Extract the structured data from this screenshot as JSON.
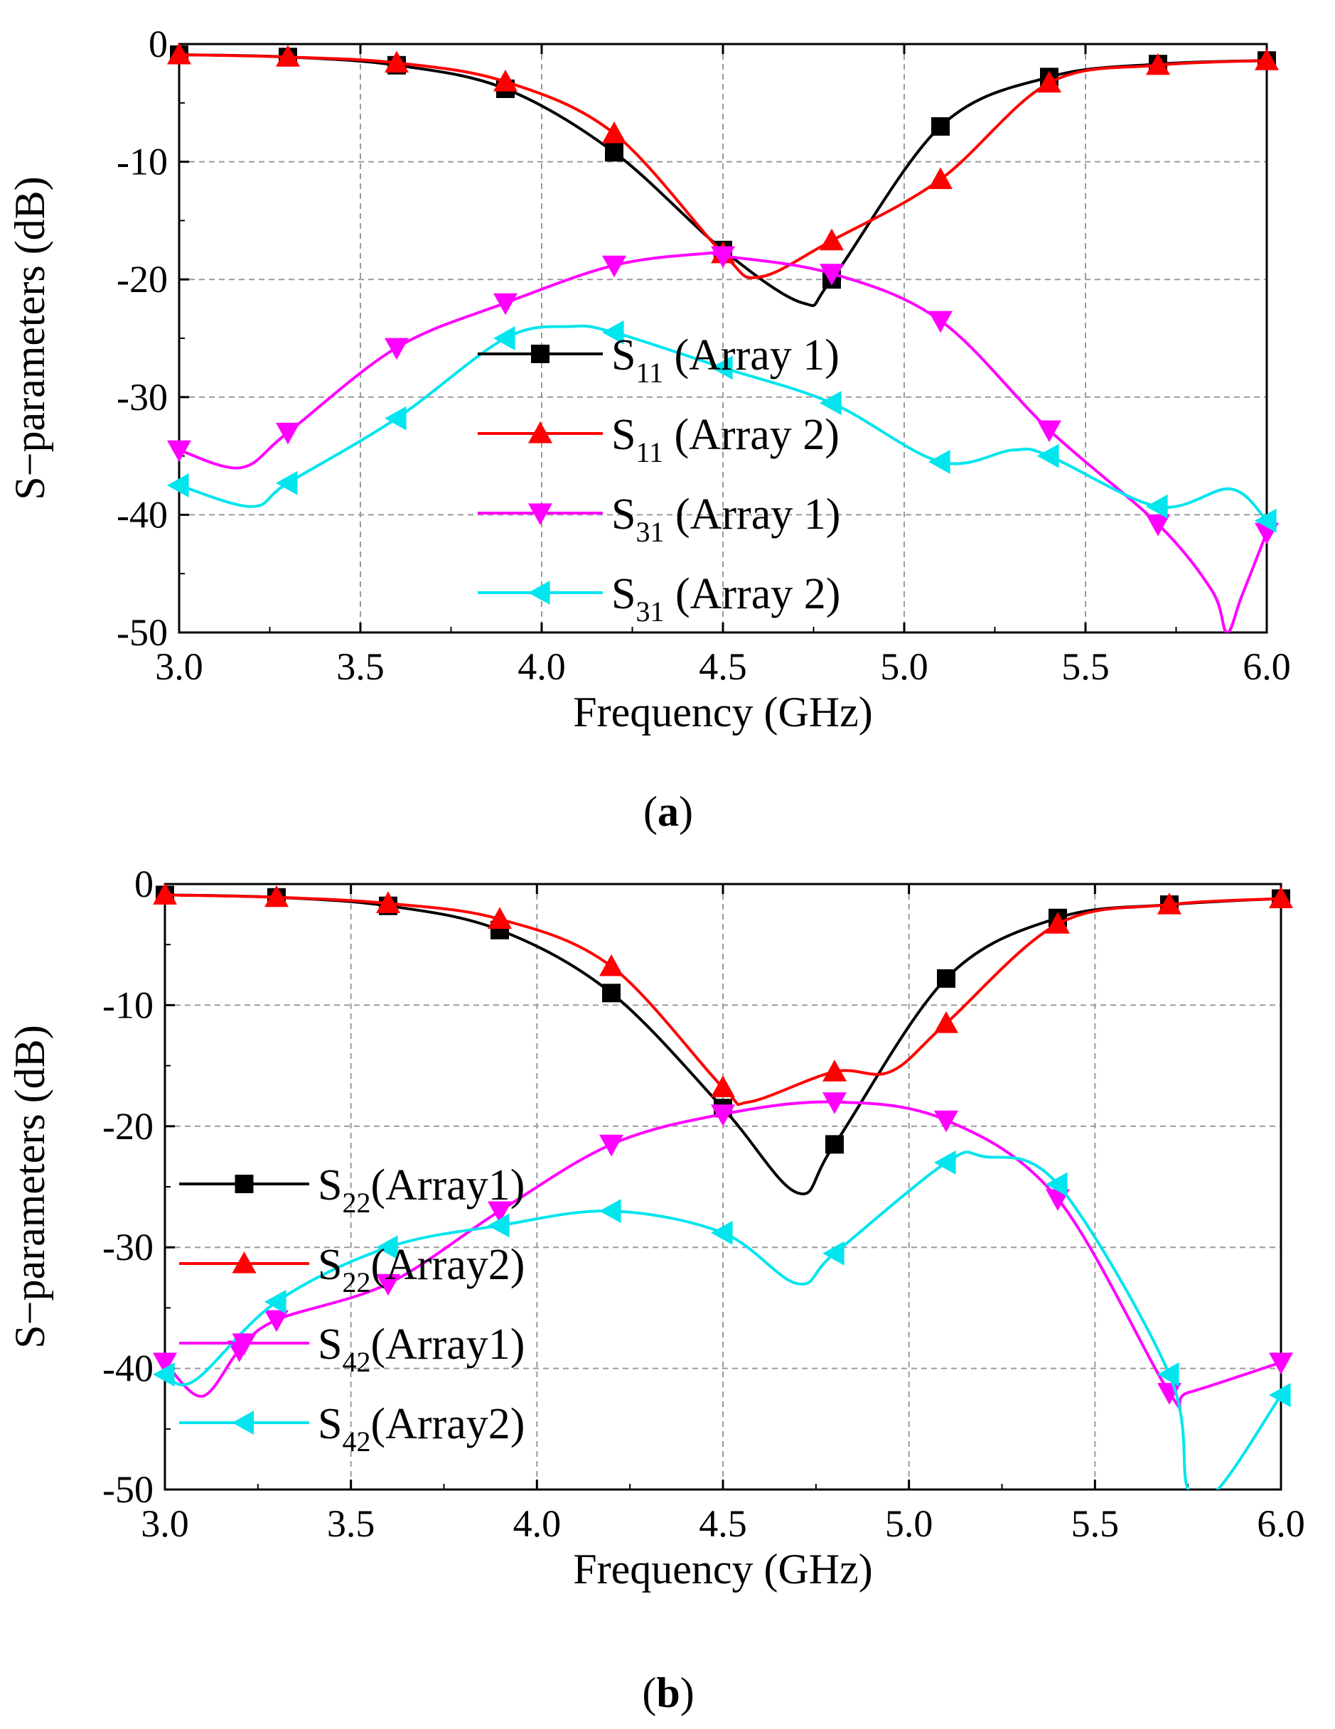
{
  "chart_data": [
    {
      "type": "line",
      "panel": "a",
      "caption_open": "(",
      "caption_letter": "a",
      "caption_close": ")",
      "xlabel": "Frequency (GHz)",
      "ylabel": "S−parameters (dB)",
      "xlim": [
        3.0,
        6.0
      ],
      "ylim": [
        -50,
        0
      ],
      "xticks": [
        3.0,
        3.5,
        4.0,
        4.5,
        5.0,
        5.5,
        6.0
      ],
      "xtick_labels": [
        "3.0",
        "3.5",
        "4.0",
        "4.5",
        "5.0",
        "5.5",
        "6.0"
      ],
      "yticks": [
        0,
        -10,
        -20,
        -30,
        -40,
        -50
      ],
      "ytick_labels": [
        "0",
        "-10",
        "-20",
        "-30",
        "-40",
        "-50"
      ],
      "grid": true,
      "legend_position": "center",
      "series": [
        {
          "name": "S11 (Array 1)",
          "legend_main": "S",
          "legend_sub": "11",
          "legend_rest": " (Array 1)",
          "color": "#000000",
          "marker": "square",
          "x": [
            3.0,
            3.3,
            3.6,
            3.9,
            4.2,
            4.5,
            4.72,
            4.8,
            5.1,
            5.4,
            5.7,
            6.0
          ],
          "y": [
            -0.9,
            -1.1,
            -1.8,
            -3.8,
            -9.2,
            -17.5,
            -22.0,
            -20.0,
            -7.0,
            -2.8,
            -1.7,
            -1.4
          ],
          "markers_x": [
            3.0,
            3.3,
            3.6,
            3.9,
            4.2,
            4.5,
            4.8,
            5.1,
            5.4,
            5.7,
            6.0
          ],
          "markers_y": [
            -0.9,
            -1.1,
            -1.8,
            -3.8,
            -9.2,
            -17.5,
            -20.0,
            -7.0,
            -2.8,
            -1.7,
            -1.4
          ]
        },
        {
          "name": "S11 (Array 2)",
          "legend_main": "S",
          "legend_sub": "11",
          "legend_rest": " (Array 2)",
          "color": "#ff0000",
          "marker": "triangle-up",
          "x": [
            3.0,
            3.3,
            3.6,
            3.9,
            4.2,
            4.5,
            4.6,
            4.8,
            5.1,
            5.4,
            5.7,
            6.0
          ],
          "y": [
            -0.9,
            -1.1,
            -1.6,
            -3.2,
            -7.6,
            -17.8,
            -19.8,
            -16.7,
            -11.5,
            -3.3,
            -1.8,
            -1.4
          ],
          "markers_x": [
            3.0,
            3.3,
            3.6,
            3.9,
            4.2,
            4.5,
            4.8,
            5.1,
            5.4,
            5.7,
            6.0
          ],
          "markers_y": [
            -0.9,
            -1.1,
            -1.6,
            -3.2,
            -7.6,
            -17.8,
            -16.7,
            -11.5,
            -3.3,
            -1.8,
            -1.4
          ]
        },
        {
          "name": "S31 (Array 1)",
          "legend_main": "S",
          "legend_sub": "31",
          "legend_rest": " (Array 1)",
          "color": "#ff00ff",
          "marker": "triangle-down",
          "x": [
            3.0,
            3.17,
            3.3,
            3.6,
            3.9,
            4.2,
            4.45,
            4.5,
            4.8,
            5.1,
            5.4,
            5.7,
            5.85,
            5.89,
            5.93,
            6.0
          ],
          "y": [
            -34.5,
            -36.0,
            -33.0,
            -25.8,
            -22.0,
            -18.8,
            -17.8,
            -18.0,
            -19.5,
            -23.5,
            -32.8,
            -40.8,
            -46.5,
            -50.0,
            -47.0,
            -41.5
          ],
          "markers_x": [
            3.0,
            3.3,
            3.6,
            3.9,
            4.2,
            4.5,
            4.8,
            5.1,
            5.4,
            5.7,
            6.0
          ],
          "markers_y": [
            -34.5,
            -33.0,
            -25.8,
            -22.0,
            -18.8,
            -18.0,
            -19.5,
            -23.5,
            -32.8,
            -40.8,
            -41.5
          ]
        },
        {
          "name": "S31 (Array 2)",
          "legend_main": "S",
          "legend_sub": "31",
          "legend_rest": " (Array 2)",
          "color": "#00e5ee",
          "marker": "triangle-left",
          "x": [
            3.0,
            3.2,
            3.3,
            3.6,
            3.9,
            4.08,
            4.2,
            4.5,
            4.8,
            5.1,
            5.3,
            5.4,
            5.7,
            5.9,
            6.0
          ],
          "y": [
            -37.5,
            -39.3,
            -37.3,
            -31.8,
            -25.0,
            -24.0,
            -24.5,
            -27.5,
            -30.5,
            -35.5,
            -34.5,
            -35.0,
            -39.3,
            -37.8,
            -40.5
          ],
          "markers_x": [
            3.0,
            3.3,
            3.6,
            3.9,
            4.2,
            4.5,
            4.8,
            5.1,
            5.4,
            5.7,
            6.0
          ],
          "markers_y": [
            -37.5,
            -37.3,
            -31.8,
            -25.0,
            -24.5,
            -27.5,
            -30.5,
            -35.5,
            -35.0,
            -39.3,
            -40.5
          ]
        }
      ]
    },
    {
      "type": "line",
      "panel": "b",
      "caption_open": "(",
      "caption_letter": "b",
      "caption_close": ")",
      "xlabel": "Frequency (GHz)",
      "ylabel": "S−parameters (dB)",
      "xlim": [
        3.0,
        6.0
      ],
      "ylim": [
        -50,
        0
      ],
      "xticks": [
        3.0,
        3.5,
        4.0,
        4.5,
        5.0,
        5.5,
        6.0
      ],
      "xtick_labels": [
        "3.0",
        "3.5",
        "4.0",
        "4.5",
        "5.0",
        "5.5",
        "6.0"
      ],
      "yticks": [
        0,
        -10,
        -20,
        -30,
        -40,
        -50
      ],
      "ytick_labels": [
        "0",
        "-10",
        "-20",
        "-30",
        "-40",
        "-50"
      ],
      "grid": true,
      "legend_position": "lower-left",
      "series": [
        {
          "name": "S22(Array1)",
          "legend_main": "S",
          "legend_sub": "22",
          "legend_rest": "(Array1)",
          "color": "#000000",
          "marker": "square",
          "x": [
            3.0,
            3.3,
            3.6,
            3.9,
            4.2,
            4.5,
            4.7,
            4.8,
            5.1,
            5.4,
            5.7,
            6.0
          ],
          "y": [
            -0.9,
            -1.1,
            -1.8,
            -3.8,
            -9.0,
            -18.5,
            -25.5,
            -21.5,
            -7.8,
            -2.8,
            -1.7,
            -1.2
          ],
          "markers_x": [
            3.0,
            3.3,
            3.6,
            3.9,
            4.2,
            4.5,
            4.8,
            5.1,
            5.4,
            5.7,
            6.0
          ],
          "markers_y": [
            -0.9,
            -1.1,
            -1.8,
            -3.8,
            -9.0,
            -18.5,
            -21.5,
            -7.8,
            -2.8,
            -1.7,
            -1.2
          ]
        },
        {
          "name": "S22(Array2)",
          "legend_main": "S",
          "legend_sub": "22",
          "legend_rest": "(Array2)",
          "color": "#ff0000",
          "marker": "triangle-up",
          "x": [
            3.0,
            3.3,
            3.6,
            3.9,
            4.2,
            4.5,
            4.57,
            4.8,
            4.95,
            5.1,
            5.4,
            5.7,
            6.0
          ],
          "y": [
            -0.9,
            -1.1,
            -1.6,
            -2.9,
            -6.8,
            -16.8,
            -18.0,
            -15.5,
            -15.5,
            -11.5,
            -3.3,
            -1.7,
            -1.2
          ],
          "markers_x": [
            3.0,
            3.3,
            3.6,
            3.9,
            4.2,
            4.5,
            4.8,
            5.1,
            5.4,
            5.7,
            6.0
          ],
          "markers_y": [
            -0.9,
            -1.1,
            -1.6,
            -2.9,
            -6.8,
            -16.8,
            -15.5,
            -11.5,
            -3.3,
            -1.7,
            -1.2
          ]
        },
        {
          "name": "S42(Array1)",
          "legend_main": "S",
          "legend_sub": "42",
          "legend_rest": "(Array1)",
          "color": "#ff00ff",
          "marker": "triangle-down",
          "x": [
            3.0,
            3.1,
            3.2,
            3.3,
            3.6,
            3.9,
            4.2,
            4.5,
            4.8,
            5.1,
            5.4,
            5.7,
            5.75,
            6.0
          ],
          "y": [
            -39.5,
            -42.3,
            -38.5,
            -36.0,
            -33.0,
            -27.0,
            -21.5,
            -19.0,
            -18.0,
            -19.5,
            -26.0,
            -42.0,
            -42.0,
            -39.5
          ],
          "markers_x": [
            3.0,
            3.2,
            3.3,
            3.6,
            3.9,
            4.2,
            4.5,
            4.8,
            5.1,
            5.4,
            5.7,
            6.0
          ],
          "markers_y": [
            -39.5,
            -38.5,
            -36.0,
            -33.0,
            -27.0,
            -21.5,
            -19.0,
            -18.0,
            -19.5,
            -26.0,
            -42.0,
            -39.5
          ]
        },
        {
          "name": "S42(Array2)",
          "legend_main": "S",
          "legend_sub": "42",
          "legend_rest": "(Array2)",
          "color": "#00e5ee",
          "marker": "triangle-left",
          "x": [
            3.0,
            3.08,
            3.3,
            3.6,
            3.9,
            4.2,
            4.5,
            4.7,
            4.8,
            5.1,
            5.2,
            5.4,
            5.7,
            5.75,
            5.83,
            6.0
          ],
          "y": [
            -40.5,
            -41.0,
            -34.5,
            -30.0,
            -28.2,
            -27.0,
            -28.8,
            -33.0,
            -30.5,
            -23.0,
            -22.5,
            -24.8,
            -40.5,
            -50.0,
            -50.0,
            -42.2
          ],
          "markers_x": [
            3.0,
            3.3,
            3.6,
            3.9,
            4.2,
            4.5,
            4.8,
            5.1,
            5.4,
            5.7,
            6.0
          ],
          "markers_y": [
            -40.5,
            -34.5,
            -30.0,
            -28.2,
            -27.0,
            -28.8,
            -30.5,
            -23.0,
            -24.8,
            -40.5,
            -42.2
          ]
        }
      ]
    }
  ]
}
